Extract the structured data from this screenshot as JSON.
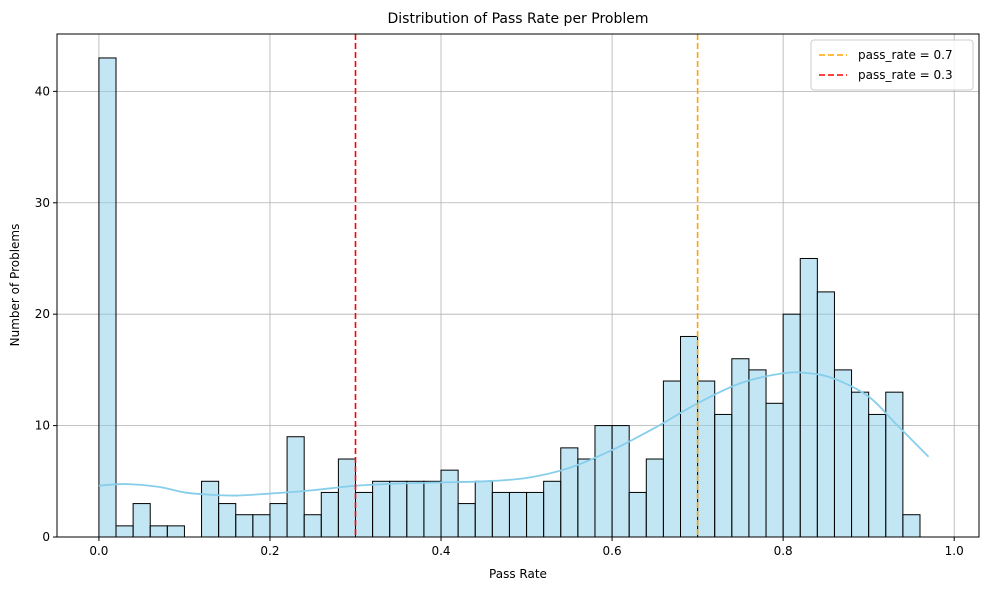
{
  "chart_data": {
    "type": "histogram",
    "title": "Distribution of Pass Rate per Problem",
    "xlabel": "Pass Rate",
    "ylabel": "Number of Problems",
    "xlim": [
      -0.049,
      1.029
    ],
    "ylim": [
      0,
      45.15
    ],
    "xticks": [
      0.0,
      0.2,
      0.4,
      0.6,
      0.8,
      1.0
    ],
    "xtick_labels": [
      "0.0",
      "0.2",
      "0.4",
      "0.6",
      "0.8",
      "1.0"
    ],
    "yticks": [
      0,
      10,
      20,
      30,
      40
    ],
    "ytick_labels": [
      "0",
      "10",
      "20",
      "30",
      "40"
    ],
    "grid": true,
    "bin_start": 0.0,
    "bin_width": 0.02,
    "counts": [
      43,
      1,
      3,
      1,
      1,
      0,
      5,
      3,
      2,
      2,
      3,
      9,
      2,
      4,
      7,
      4,
      5,
      5,
      5,
      5,
      6,
      3,
      5,
      4,
      4,
      4,
      5,
      8,
      7,
      10,
      10,
      4,
      7,
      14,
      18,
      14,
      11,
      16,
      15,
      12,
      20,
      25,
      22,
      15,
      13,
      11,
      13,
      2
    ],
    "bar_color": "#87ceeb",
    "kde": {
      "x": [
        0.0,
        0.03,
        0.07,
        0.1,
        0.13,
        0.16,
        0.2,
        0.25,
        0.3,
        0.35,
        0.4,
        0.45,
        0.5,
        0.55,
        0.6,
        0.65,
        0.7,
        0.75,
        0.8,
        0.83,
        0.86,
        0.9,
        0.93,
        0.97
      ],
      "y": [
        4.6,
        4.75,
        4.5,
        4.0,
        3.8,
        3.72,
        3.9,
        4.2,
        4.6,
        4.8,
        4.9,
        5.0,
        5.3,
        6.2,
        7.8,
        9.8,
        12.0,
        13.8,
        14.7,
        14.7,
        14.2,
        12.6,
        10.3,
        7.2
      ],
      "color": "#87ceeb"
    },
    "vlines": [
      {
        "x": 0.7,
        "label": "pass_rate = 0.7",
        "color": "#ffa500"
      },
      {
        "x": 0.3,
        "label": "pass_rate = 0.3",
        "color": "#ff0000"
      }
    ],
    "legend_position": "top-right"
  }
}
